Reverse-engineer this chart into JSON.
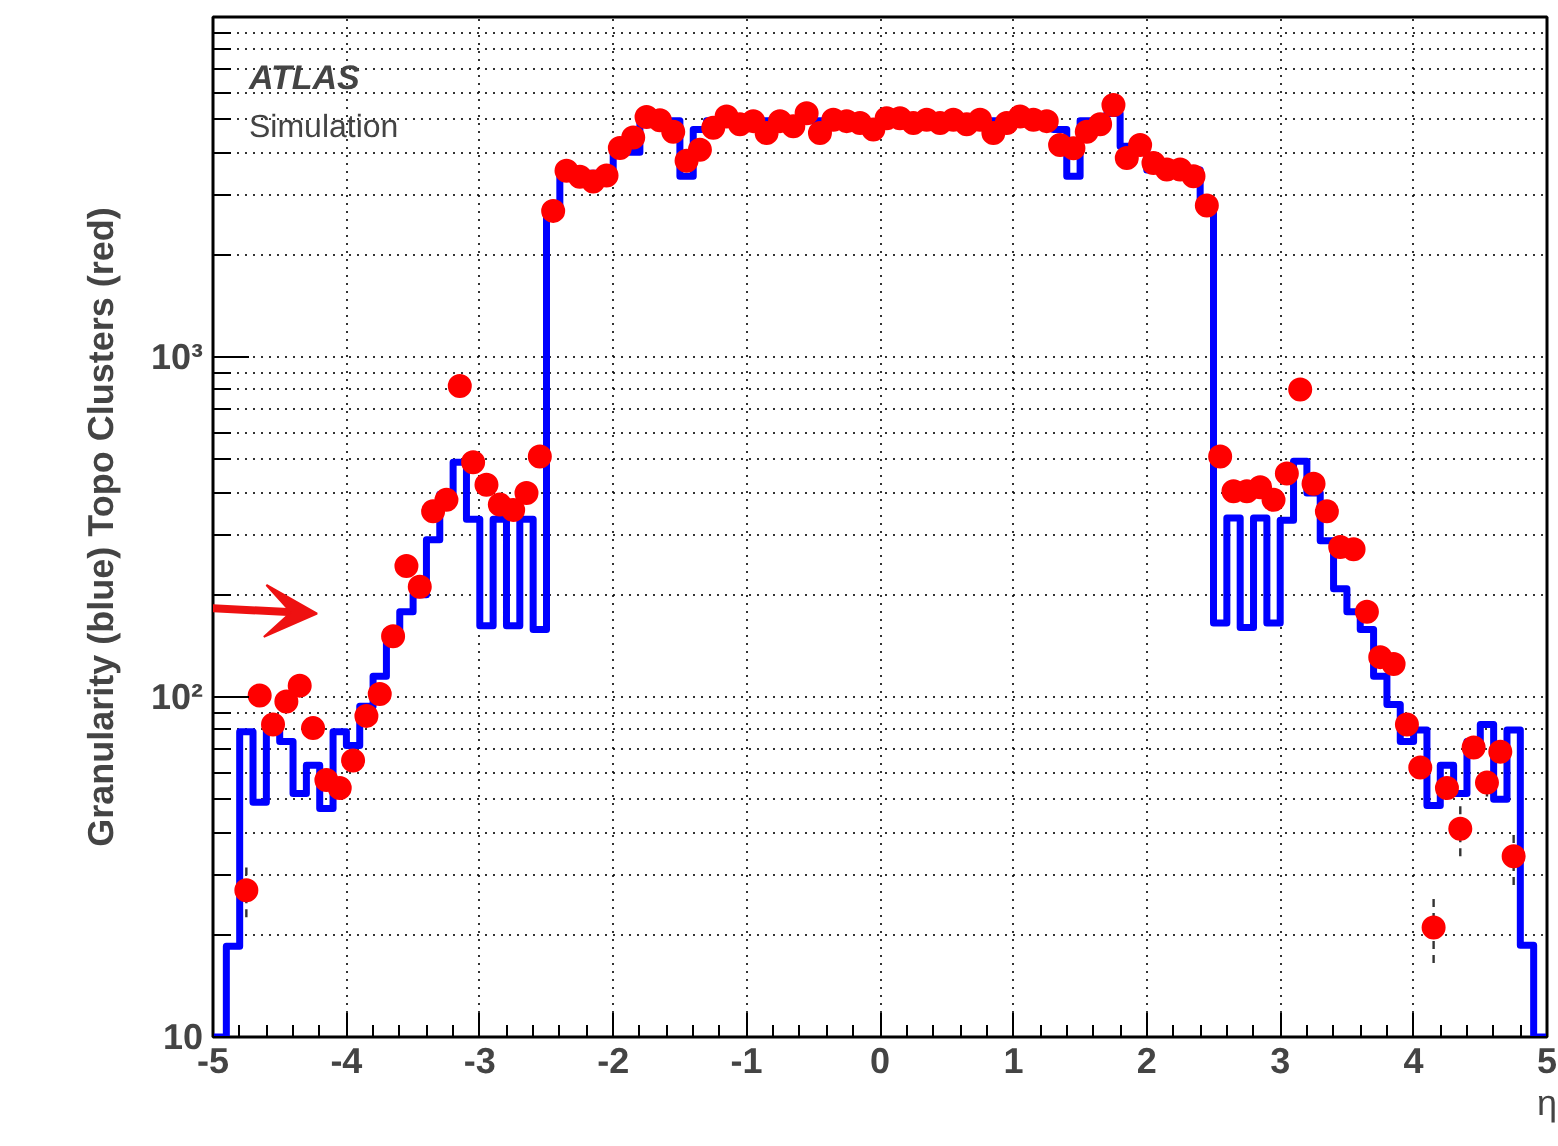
{
  "chart_data": {
    "type": "histogram",
    "xlabel": "η",
    "ylabel": "Granularity (blue) Topo Clusters (red)",
    "annotations": [
      "ATLAS",
      "Simulation"
    ],
    "bins": [
      -5.0,
      -4.9,
      -4.8,
      -4.7,
      -4.6,
      -4.5,
      -4.4,
      -4.3,
      -4.2,
      -4.1,
      -4.0,
      -3.9,
      -3.8,
      -3.7,
      -3.6,
      -3.5,
      -3.4,
      -3.3,
      -3.2,
      -3.1,
      -3.0,
      -2.9,
      -2.8,
      -2.7,
      -2.6,
      -2.5,
      -2.4,
      -2.3,
      -2.2,
      -2.1,
      -2.0,
      -1.9,
      -1.8,
      -1.7,
      -1.6,
      -1.5,
      -1.4,
      -1.3,
      -1.2,
      -1.1,
      -1.0,
      -0.9,
      -0.8,
      -0.7,
      -0.6,
      -0.5,
      -0.4,
      -0.3,
      -0.2,
      -0.1,
      0.0,
      0.1,
      0.2,
      0.3,
      0.4,
      0.5,
      0.6,
      0.7,
      0.8,
      0.9,
      1.0,
      1.1,
      1.2,
      1.3,
      1.4,
      1.5,
      1.6,
      1.7,
      1.8,
      1.9,
      2.0,
      2.1,
      2.2,
      2.3,
      2.4,
      2.5,
      2.6,
      2.7,
      2.8,
      2.9,
      3.0,
      3.1,
      3.2,
      3.3,
      3.4,
      3.5,
      3.6,
      3.7,
      3.8,
      3.9,
      4.0,
      4.1,
      4.2,
      4.3,
      4.4,
      4.5,
      4.6,
      4.7,
      4.8,
      4.9,
      5.0
    ],
    "series": [
      {
        "color": "#0000ff",
        "values": [
          10,
          18.5,
          79,
          49,
          81,
          74,
          52,
          63,
          47,
          79,
          72,
          94,
          115,
          156,
          178,
          200,
          290,
          395,
          490,
          333,
          162,
          333,
          162,
          333,
          158,
          2720,
          3520,
          3470,
          3470,
          3500,
          4000,
          4000,
          5100,
          4950,
          4950,
          3400,
          4670,
          4950,
          4950,
          4950,
          4950,
          4950,
          4950,
          4950,
          4950,
          4950,
          4950,
          4950,
          4950,
          4760,
          4950,
          4950,
          4950,
          4950,
          4950,
          4950,
          4950,
          4950,
          4950,
          4950,
          4950,
          4950,
          4950,
          4670,
          3400,
          4950,
          4950,
          5200,
          4170,
          4170,
          3550,
          3550,
          3550,
          3550,
          2780,
          165,
          336,
          160,
          336,
          165,
          331,
          494,
          398,
          288,
          208,
          178,
          158,
          115,
          95,
          74,
          80,
          48,
          63,
          52,
          74,
          83,
          50,
          80,
          18.6,
          10
        ]
      },
      {
        "type": "scatter",
        "color": "#ff0000",
        "marker": "circle",
        "x": [
          -4.75,
          -4.65,
          -4.55,
          -4.45,
          -4.35,
          -4.25,
          -4.15,
          -4.05,
          -3.95,
          -3.85,
          -3.75,
          -3.65,
          -3.55,
          -3.45,
          -3.35,
          -3.25,
          -3.15,
          -3.05,
          -2.95,
          -2.85,
          -2.75,
          -2.65,
          -2.55,
          -2.45,
          -2.35,
          -2.25,
          -2.15,
          -2.05,
          -1.95,
          -1.85,
          -1.75,
          -1.65,
          -1.55,
          -1.45,
          -1.35,
          -1.25,
          -1.15,
          -1.05,
          -0.95,
          -0.85,
          -0.75,
          -0.65,
          -0.55,
          -0.45,
          -0.35,
          -0.25,
          -0.15,
          -0.05,
          0.05,
          0.15,
          0.25,
          0.35,
          0.45,
          0.55,
          0.65,
          0.75,
          0.85,
          0.95,
          1.05,
          1.15,
          1.25,
          1.35,
          1.45,
          1.55,
          1.65,
          1.75,
          1.85,
          1.95,
          2.05,
          2.15,
          2.25,
          2.35,
          2.45,
          2.55,
          2.65,
          2.75,
          2.85,
          2.95,
          3.05,
          3.15,
          3.25,
          3.35,
          3.45,
          3.55,
          3.65,
          3.75,
          3.85,
          3.95,
          4.05,
          4.15,
          4.25,
          4.35,
          4.45,
          4.55,
          4.65,
          4.75
        ],
        "values": [
          27,
          101,
          83,
          97,
          108,
          81,
          57,
          54,
          65,
          88,
          102,
          151,
          243,
          211,
          352,
          380,
          822,
          490,
          421,
          368,
          355,
          398,
          510,
          2690,
          3530,
          3390,
          3280,
          3420,
          4120,
          4420,
          5080,
          4970,
          4600,
          3780,
          4070,
          4720,
          5100,
          4840,
          4940,
          4560,
          4940,
          4770,
          5210,
          4560,
          4990,
          4940,
          4880,
          4670,
          5040,
          5040,
          4880,
          4990,
          4880,
          4990,
          4840,
          4990,
          4560,
          4880,
          5100,
          4990,
          4940,
          4200,
          4110,
          4600,
          4840,
          5510,
          3850,
          4200,
          3720,
          3560,
          3560,
          3400,
          2790,
          510,
          403,
          403,
          414,
          380,
          454,
          803,
          424,
          352,
          276,
          272,
          178,
          131,
          125,
          83,
          62,
          21,
          54,
          41,
          71,
          56,
          69,
          34
        ],
        "errors": [
          4.5,
          null,
          null,
          null,
          null,
          null,
          null,
          null,
          null,
          null,
          null,
          null,
          null,
          null,
          null,
          null,
          null,
          null,
          null,
          null,
          null,
          null,
          null,
          null,
          null,
          null,
          null,
          null,
          null,
          null,
          null,
          null,
          null,
          null,
          null,
          null,
          null,
          null,
          null,
          null,
          null,
          null,
          null,
          null,
          null,
          null,
          null,
          null,
          null,
          null,
          null,
          null,
          null,
          null,
          null,
          null,
          null,
          null,
          null,
          null,
          null,
          null,
          null,
          null,
          null,
          null,
          null,
          null,
          null,
          null,
          null,
          null,
          null,
          null,
          null,
          null,
          null,
          null,
          null,
          null,
          null,
          null,
          null,
          null,
          null,
          null,
          null,
          null,
          null,
          4.5,
          4,
          7,
          null,
          5,
          null,
          6
        ]
      }
    ],
    "xlim": [
      -5,
      5
    ],
    "ylim": [
      10,
      10000
    ],
    "xticks": [
      -5,
      -4,
      -3,
      -2,
      -1,
      0,
      1,
      2,
      3,
      4,
      5
    ],
    "yticks": [
      10,
      {
        "value": 100,
        "label": "10²"
      },
      {
        "value": 1000,
        "label": "10³"
      }
    ],
    "log": "y",
    "grid": true
  }
}
